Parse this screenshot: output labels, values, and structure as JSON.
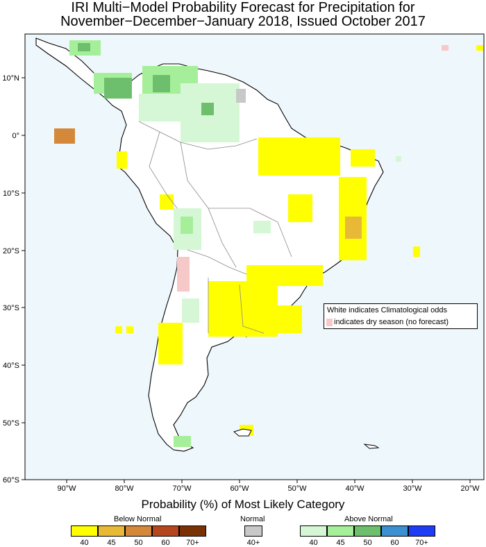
{
  "title_line1": "IRI Multi−Model Probability Forecast for Precipitation for",
  "title_line2": "November−December−January 2018, Issued October 2017",
  "map": {
    "ocean_color": "#eef7fc",
    "land_color": "#ffffff",
    "lon_labels": [
      "90°W",
      "80°W",
      "70°W",
      "60°W",
      "50°W",
      "40°W",
      "30°W",
      "20°W"
    ],
    "lat_labels": [
      "10°N",
      "0°",
      "10°S",
      "20°S",
      "30°S",
      "40°S",
      "50°S",
      "60°S"
    ]
  },
  "legend_box": {
    "line1": "White indicates Climatological odds",
    "line2": "indicates dry season (no forecast)",
    "dry_color": "#f7c8c8"
  },
  "colorbar": {
    "title": "Probability (%) of Most Likely Category",
    "below": {
      "label": "Below Normal",
      "colors": [
        "#ffff00",
        "#e8b937",
        "#d4893a",
        "#b5471f",
        "#7a3205"
      ],
      "values": [
        "40",
        "45",
        "50",
        "60",
        "70+"
      ]
    },
    "normal": {
      "label": "Normal",
      "color": "#c8c8c8",
      "value": "40+"
    },
    "above": {
      "label": "Above Normal",
      "colors": [
        "#d6f7d6",
        "#a6ef9a",
        "#6dbf6d",
        "#3c8fd0",
        "#1f3cf5"
      ],
      "values": [
        "40",
        "45",
        "50",
        "60",
        "70+"
      ]
    }
  }
}
